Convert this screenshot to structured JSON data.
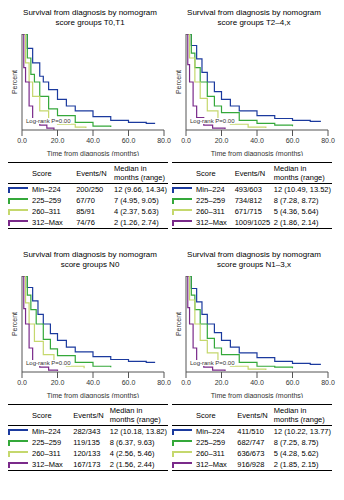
{
  "chart_data": [
    {
      "type": "line",
      "title": "Survival from diagnosis by nomogram score groups T0,T1",
      "xlabel": "Time from diagnosis (months)",
      "ylabel": "Percent",
      "annotation": "Log-rank P=0.00",
      "xlim": [
        0,
        80
      ],
      "xticks": [
        {
          "value": 0,
          "label": "0.0"
        },
        {
          "value": 20,
          "label": "20.0"
        },
        {
          "value": 40,
          "label": "40.0"
        },
        {
          "value": 60,
          "label": "60.0"
        },
        {
          "value": 80,
          "label": "80.0"
        }
      ],
      "ylim": [
        0,
        1
      ],
      "tick_labels": "x",
      "line_style": "step",
      "table_columns": [
        "Score",
        "Events/N",
        "Median in months (range)"
      ],
      "series": [
        {
          "name": "Min–224",
          "color": "#1b3a9e",
          "events": "200/250",
          "median": "12 (9.66, 14.34)",
          "x": [
            0,
            3,
            6,
            10,
            12,
            15,
            20,
            25,
            30,
            40,
            50,
            60,
            70,
            75
          ],
          "values": [
            1,
            0.85,
            0.7,
            0.56,
            0.5,
            0.42,
            0.32,
            0.25,
            0.2,
            0.14,
            0.1,
            0.08,
            0.07,
            0.07
          ]
        },
        {
          "name": "225–259",
          "color": "#34a83a",
          "events": "67/70",
          "median": "7 (4.95, 9.05)",
          "x": [
            0,
            3,
            5,
            7,
            10,
            15,
            20,
            30,
            40,
            50
          ],
          "values": [
            1,
            0.75,
            0.58,
            0.5,
            0.35,
            0.22,
            0.15,
            0.08,
            0.04,
            0.03
          ]
        },
        {
          "name": "260–311",
          "color": "#c5d86d",
          "events": "85/91",
          "median": "4 (2.37, 5.63)",
          "x": [
            0,
            2,
            4,
            6,
            10,
            15,
            20,
            30,
            36
          ],
          "values": [
            1,
            0.7,
            0.5,
            0.35,
            0.2,
            0.1,
            0.06,
            0.03,
            0.02
          ]
        },
        {
          "name": "312–Max",
          "color": "#7a2a8a",
          "events": "74/76",
          "median": "2 (1.26, 2.74)",
          "x": [
            0,
            1,
            2,
            4,
            6,
            10,
            14,
            18
          ],
          "values": [
            1,
            0.65,
            0.5,
            0.25,
            0.12,
            0.05,
            0.02,
            0
          ]
        }
      ]
    },
    {
      "type": "line",
      "title": "Survival from diagnosis by nomogram score groups T2–4,x",
      "xlabel": "Time from diagnosis (months)",
      "ylabel": "Percent",
      "annotation": "Log-rank P=0.00",
      "xlim": [
        0,
        80
      ],
      "xticks": [
        {
          "value": 0,
          "label": "0.0"
        },
        {
          "value": 20,
          "label": "20.0"
        },
        {
          "value": 40,
          "label": "40.0"
        },
        {
          "value": 60,
          "label": "60.0"
        },
        {
          "value": 80,
          "label": "80.0"
        }
      ],
      "ylim": [
        0,
        1
      ],
      "tick_labels": "x",
      "line_style": "step",
      "table_columns": [
        "Score",
        "Events/N",
        "Median in months (range)"
      ],
      "series": [
        {
          "name": "Min–224",
          "color": "#1b3a9e",
          "events": "493/603",
          "median": "12 (10.49, 13.52)",
          "x": [
            0,
            3,
            6,
            9,
            12,
            16,
            20,
            25,
            30,
            40,
            50,
            60,
            70,
            76
          ],
          "values": [
            1,
            0.88,
            0.74,
            0.6,
            0.5,
            0.4,
            0.32,
            0.25,
            0.2,
            0.15,
            0.12,
            0.1,
            0.09,
            0.09
          ]
        },
        {
          "name": "225–259",
          "color": "#34a83a",
          "events": "734/812",
          "median": "8 (7.28, 8.72)",
          "x": [
            0,
            3,
            5,
            8,
            12,
            16,
            20,
            30,
            40,
            50,
            60
          ],
          "values": [
            1,
            0.8,
            0.65,
            0.5,
            0.35,
            0.25,
            0.18,
            0.1,
            0.07,
            0.05,
            0.04
          ]
        },
        {
          "name": "260–311",
          "color": "#c5d86d",
          "events": "671/715",
          "median": "5 (4.36, 5.64)",
          "x": [
            0,
            2,
            5,
            8,
            12,
            18,
            25,
            35,
            45
          ],
          "values": [
            1,
            0.75,
            0.5,
            0.33,
            0.2,
            0.1,
            0.06,
            0.03,
            0.02
          ]
        },
        {
          "name": "312–Max",
          "color": "#7a2a8a",
          "events": "1009/1025",
          "median": "2 (1.86, 2.14)",
          "x": [
            0,
            1,
            2,
            4,
            6,
            10,
            15,
            22
          ],
          "values": [
            1,
            0.68,
            0.5,
            0.25,
            0.13,
            0.05,
            0.02,
            0.01
          ]
        }
      ]
    },
    {
      "type": "line",
      "title": "Survival from diagnosis by nomogram score groups N0",
      "xlabel": "Time from diagnosis (months)",
      "ylabel": "Percent",
      "annotation": "Log-rank P=0.00",
      "xlim": [
        0,
        80
      ],
      "xticks": [
        {
          "value": 0,
          "label": "0.0"
        },
        {
          "value": 20,
          "label": "20.0"
        },
        {
          "value": 40,
          "label": "40.0"
        },
        {
          "value": 60,
          "label": "60.0"
        },
        {
          "value": 80,
          "label": "80.0"
        }
      ],
      "ylim": [
        0,
        1
      ],
      "tick_labels": "x",
      "line_style": "step",
      "table_columns": [
        "Score",
        "Events/N",
        "Median in months (range)"
      ],
      "series": [
        {
          "name": "Min–224",
          "color": "#1b3a9e",
          "events": "282/343",
          "median": "12 (10.18, 13.82)",
          "x": [
            0,
            3,
            6,
            9,
            12,
            16,
            20,
            25,
            30,
            40,
            50,
            60,
            70,
            75
          ],
          "values": [
            1,
            0.88,
            0.74,
            0.6,
            0.5,
            0.4,
            0.33,
            0.26,
            0.21,
            0.16,
            0.13,
            0.11,
            0.1,
            0.1
          ]
        },
        {
          "name": "225–259",
          "color": "#34a83a",
          "events": "119/135",
          "median": "8 (6.37, 9.63)",
          "x": [
            0,
            3,
            5,
            8,
            12,
            16,
            20,
            30,
            40,
            50
          ],
          "values": [
            1,
            0.8,
            0.65,
            0.5,
            0.34,
            0.24,
            0.17,
            0.1,
            0.06,
            0.05
          ]
        },
        {
          "name": "260–311",
          "color": "#c5d86d",
          "events": "120/133",
          "median": "4 (2.56, 5.46)",
          "x": [
            0,
            2,
            4,
            7,
            12,
            18,
            25,
            35
          ],
          "values": [
            1,
            0.72,
            0.5,
            0.32,
            0.18,
            0.1,
            0.06,
            0.04
          ]
        },
        {
          "name": "312–Max",
          "color": "#7a2a8a",
          "events": "167/173",
          "median": "2 (1.56, 2.44)",
          "x": [
            0,
            1,
            2,
            4,
            6,
            10,
            15,
            20
          ],
          "values": [
            1,
            0.66,
            0.5,
            0.25,
            0.12,
            0.05,
            0.02,
            0.01
          ]
        }
      ]
    },
    {
      "type": "line",
      "title": "Survival from diagnosis by nomogram score groups N1–3,x",
      "xlabel": "Time from diagnosis (months)",
      "ylabel": "Percent",
      "annotation": "Log-rank P=0.00",
      "xlim": [
        0,
        80
      ],
      "xticks": [
        {
          "value": 0,
          "label": "0.0"
        },
        {
          "value": 20,
          "label": "20.0"
        },
        {
          "value": 40,
          "label": "40.0"
        },
        {
          "value": 60,
          "label": "60.0"
        },
        {
          "value": 80,
          "label": "80.0"
        }
      ],
      "ylim": [
        0,
        1
      ],
      "tick_labels": "x",
      "line_style": "step",
      "table_columns": [
        "Score",
        "Events/N",
        "Median in months (range)"
      ],
      "series": [
        {
          "name": "Min–224",
          "color": "#1b3a9e",
          "events": "411/510",
          "median": "12 (10.22, 13.77)",
          "x": [
            0,
            3,
            6,
            9,
            12,
            16,
            20,
            25,
            30,
            40,
            50,
            60,
            70,
            76
          ],
          "values": [
            1,
            0.87,
            0.73,
            0.6,
            0.5,
            0.41,
            0.33,
            0.26,
            0.2,
            0.15,
            0.11,
            0.09,
            0.08,
            0.08
          ]
        },
        {
          "name": "225–259",
          "color": "#34a83a",
          "events": "682/747",
          "median": "8 (7.25, 8.75)",
          "x": [
            0,
            3,
            5,
            8,
            12,
            16,
            20,
            30,
            40,
            50,
            60
          ],
          "values": [
            1,
            0.8,
            0.65,
            0.5,
            0.35,
            0.25,
            0.18,
            0.1,
            0.06,
            0.05,
            0.04
          ]
        },
        {
          "name": "260–311",
          "color": "#c5d86d",
          "events": "636/673",
          "median": "5 (4.28, 5.62)",
          "x": [
            0,
            2,
            5,
            8,
            12,
            18,
            25,
            35,
            45
          ],
          "values": [
            1,
            0.75,
            0.5,
            0.33,
            0.2,
            0.1,
            0.06,
            0.03,
            0.02
          ]
        },
        {
          "name": "312–Max",
          "color": "#7a2a8a",
          "events": "916/928",
          "median": "2 (1.85, 2.15)",
          "x": [
            0,
            1,
            2,
            4,
            6,
            10,
            15,
            22
          ],
          "values": [
            1,
            0.67,
            0.5,
            0.25,
            0.12,
            0.05,
            0.02,
            0.01
          ]
        }
      ]
    }
  ]
}
